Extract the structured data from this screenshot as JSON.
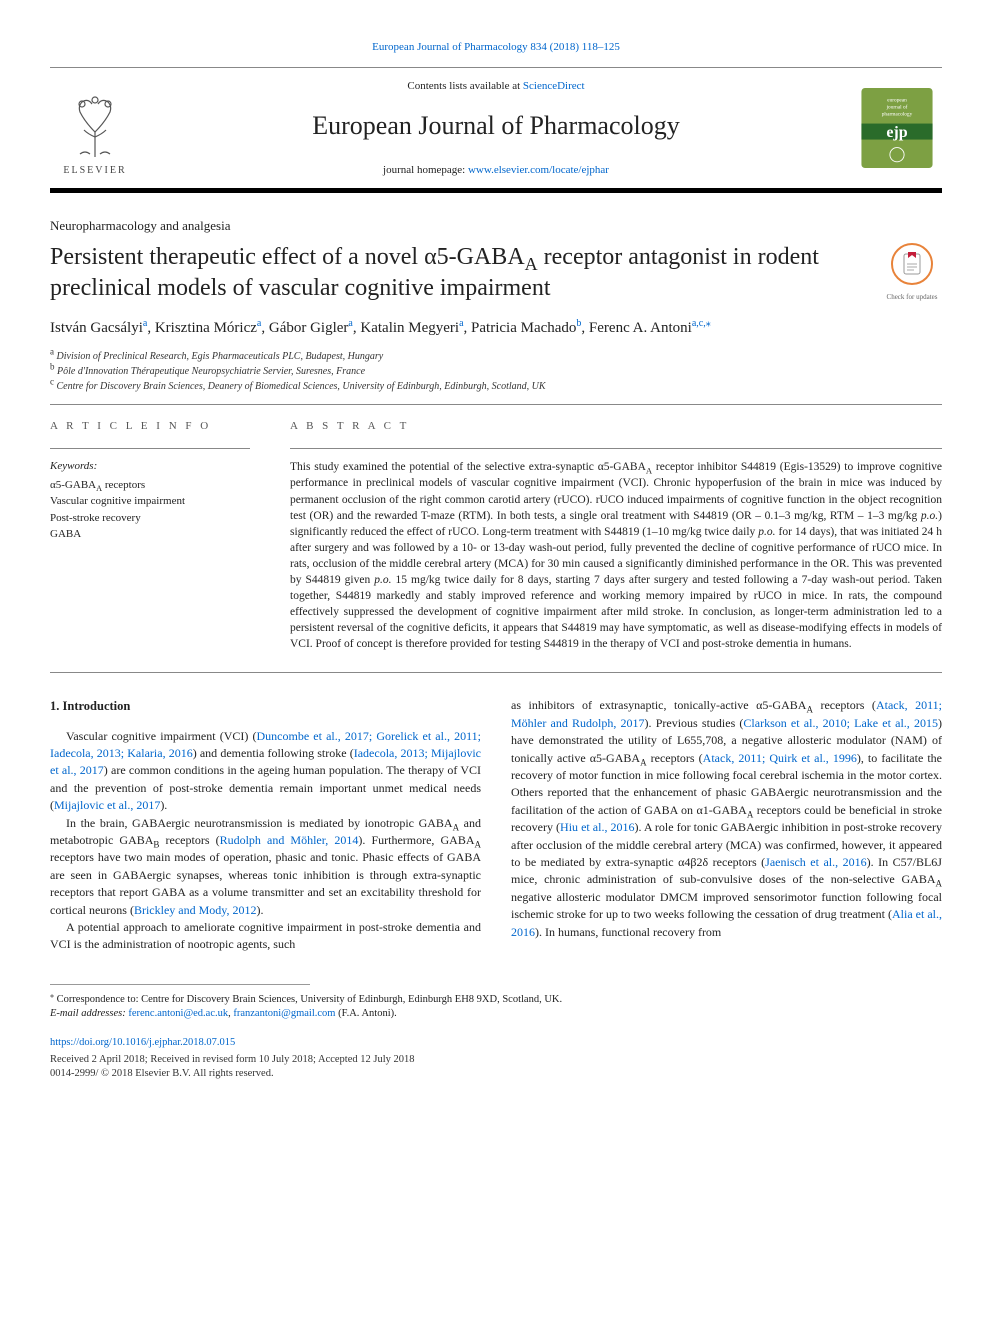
{
  "header": {
    "top_citation": "European Journal of Pharmacology 834 (2018) 118–125",
    "top_citation_url_label": "European Journal of Pharmacology 834 (2018) 118–125",
    "contents_prefix": "Contents lists available at ",
    "contents_link": "ScienceDirect",
    "journal_title": "European Journal of Pharmacology",
    "homepage_prefix": "journal homepage: ",
    "homepage_url": "www.elsevier.com/locate/ejphar",
    "elsevier_name": "ELSEVIER",
    "logo_colors": {
      "tree": "#666666",
      "text": "#555555",
      "ejp_bg": "#7da043",
      "ejp_stripe": "#2a6b2a",
      "ejp_text": "#ffffff"
    }
  },
  "article": {
    "section": "Neuropharmacology and analgesia",
    "title_html": "Persistent therapeutic effect of a novel α5-GABA<sub>A</sub> receptor antagonist in rodent preclinical models of vascular cognitive impairment",
    "updates_label": "Check for updates",
    "authors_html": "István Gacsályi<sup>a</sup>, Krisztina Móricz<sup>a</sup>, Gábor Gigler<sup>a</sup>, Katalin Megyeri<sup>a</sup>, Patricia Machado<sup>b</sup>, Ferenc A. Antoni<sup>a,c,</sup><sup>⁎</sup>",
    "affiliations": [
      {
        "sup": "a",
        "text": "Division of Preclinical Research, Egis Pharmaceuticals PLC, Budapest, Hungary"
      },
      {
        "sup": "b",
        "text": "Pôle d'Innovation Thérapeutique Neuropsychiatrie Servier, Suresnes, France"
      },
      {
        "sup": "c",
        "text": "Centre for Discovery Brain Sciences, Deanery of Biomedical Sciences, University of Edinburgh, Edinburgh, Scotland, UK"
      }
    ]
  },
  "info": {
    "heading": "A R T I C L E  I N F O",
    "keywords_label": "Keywords:",
    "keywords": [
      "α5-GABA<sub>A</sub> receptors",
      "Vascular cognitive impairment",
      "Post-stroke recovery",
      "GABA"
    ]
  },
  "abstract": {
    "heading": "A B S T R A C T",
    "text_html": "This study examined the potential of the selective extra-synaptic α5-GABA<sub>A</sub> receptor inhibitor S44819 (Egis-13529) to improve cognitive performance in preclinical models of vascular cognitive impairment (VCI). Chronic hypoperfusion of the brain in mice was induced by permanent occlusion of the right common carotid artery (rUCO). rUCO induced impairments of cognitive function in the object recognition test (OR) and the rewarded T-maze (RTM). In both tests, a single oral treatment with S44819 (OR – 0.1–3 mg/kg, RTM – 1–3 mg/kg <i>p.o.</i>) significantly reduced the effect of rUCO. Long-term treatment with S44819 (1–10 mg/kg twice daily <i>p.o.</i> for 14 days), that was initiated 24 h after surgery and was followed by a 10- or 13-day wash-out period, fully prevented the decline of cognitive performance of rUCO mice. In rats, occlusion of the middle cerebral artery (MCA) for 30 min caused a significantly diminished performance in the OR. This was prevented by S44819 given <i>p.o.</i> 15 mg/kg twice daily for 8 days, starting 7 days after surgery and tested following a 7-day wash-out period. Taken together, S44819 markedly and stably improved reference and working memory impaired by rUCO in mice. In rats, the compound effectively suppressed the development of cognitive impairment after mild stroke. In conclusion, as longer-term administration led to a persistent reversal of the cognitive deficits, it appears that S44819 may have symptomatic, as well as disease-modifying effects in models of VCI. Proof of concept is therefore provided for testing S44819 in the therapy of VCI and post-stroke dementia in humans."
  },
  "body": {
    "intro_heading": "1. Introduction",
    "left_paragraphs_html": [
      "Vascular cognitive impairment (VCI) (<span class=\"ref-link\">Duncombe et al., 2017; Gorelick et al., 2011; Iadecola, 2013; Kalaria, 2016</span>) and dementia following stroke (<span class=\"ref-link\">Iadecola, 2013; Mijajlovic et al., 2017</span>) are common conditions in the ageing human population. The therapy of VCI and the prevention of post-stroke dementia remain important unmet medical needs (<span class=\"ref-link\">Mijajlovic et al., 2017</span>).",
      "In the brain, GABAergic neurotransmission is mediated by ionotropic GABA<sub>A</sub> and metabotropic GABA<sub>B</sub> receptors (<span class=\"ref-link\">Rudolph and Möhler, 2014</span>). Furthermore, GABA<sub>A</sub> receptors have two main modes of operation, phasic and tonic. Phasic effects of GABA are seen in GABAergic synapses, whereas tonic inhibition is through extra-synaptic receptors that report GABA as a volume transmitter and set an excitability threshold for cortical neurons (<span class=\"ref-link\">Brickley and Mody, 2012</span>).",
      "A potential approach to ameliorate cognitive impairment in post-stroke dementia and VCI is the administration of nootropic agents, such"
    ],
    "right_paragraphs_html": [
      "as inhibitors of extrasynaptic, tonically-active α5-GABA<sub>A</sub> receptors (<span class=\"ref-link\">Atack, 2011; Möhler and Rudolph, 2017</span>). Previous studies (<span class=\"ref-link\">Clarkson et al., 2010; Lake et al., 2015</span>) have demonstrated the utility of L655,708, a negative allosteric modulator (NAM) of tonically active α5-GABA<sub>A</sub> receptors (<span class=\"ref-link\">Atack, 2011; Quirk et al., 1996</span>), to facilitate the recovery of motor function in mice following focal cerebral ischemia in the motor cortex. Others reported that the enhancement of phasic GABAergic neurotransmission and the facilitation of the action of GABA on α1-GABA<sub>A</sub> receptors could be beneficial in stroke recovery (<span class=\"ref-link\">Hiu et al., 2016</span>). A role for tonic GABAergic inhibition in post-stroke recovery after occlusion of the middle cerebral artery (MCA) was confirmed, however, it appeared to be mediated by extra-synaptic α4β2δ receptors (<span class=\"ref-link\">Jaenisch et al., 2016</span>). In C57/BL6J mice, chronic administration of sub-convulsive doses of the non-selective GABA<sub>A</sub> negative allosteric modulator DMCM improved sensorimotor function following focal ischemic stroke for up to two weeks following the cessation of drug treatment (<span class=\"ref-link\">Alia et al., 2016</span>). In humans, functional recovery from"
    ]
  },
  "footer": {
    "corr_symbol": "⁎",
    "corr_text": "Correspondence to: Centre for Discovery Brain Sciences, University of Edinburgh, Edinburgh EH8 9XD, Scotland, UK.",
    "email_label": "E-mail addresses: ",
    "emails": [
      "ferenc.antoni@ed.ac.uk",
      "franzantoni@gmail.com"
    ],
    "email_attribution": " (F.A. Antoni).",
    "doi": "https://doi.org/10.1016/j.ejphar.2018.07.015",
    "received": "Received 2 April 2018; Received in revised form 10 July 2018; Accepted 12 July 2018",
    "issn_copyright": "0014-2999/ © 2018 Elsevier B.V. All rights reserved."
  },
  "colors": {
    "link": "#0066cc",
    "text": "#222222",
    "rule": "#888888",
    "updates_ring": "#e8833a",
    "updates_mark": "#c41e3a"
  }
}
